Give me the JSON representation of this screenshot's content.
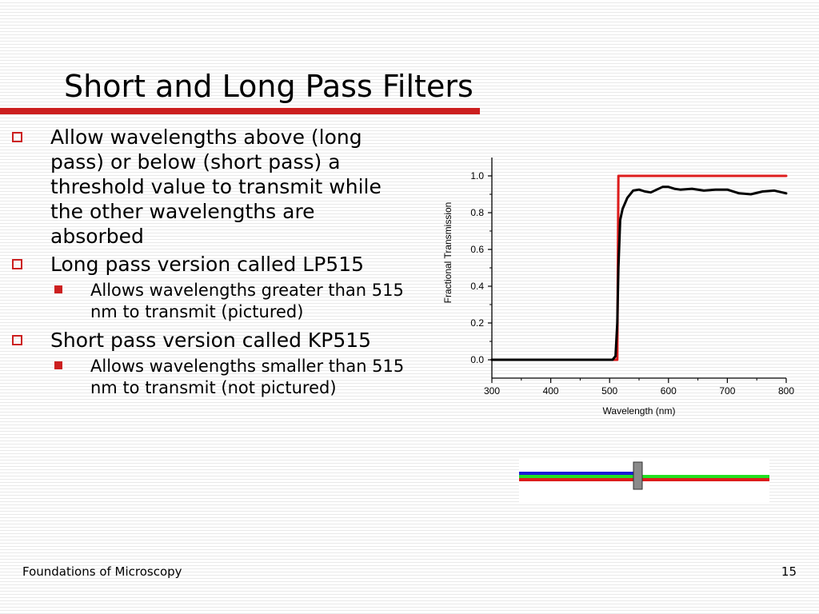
{
  "slide": {
    "title": "Short and Long Pass Filters",
    "accent_color": "#cc1f1f",
    "bullets": [
      {
        "text": "Allow wavelengths above (long pass) or below (short pass) a threshold value to transmit while the other wavelengths are absorbed",
        "sub": []
      },
      {
        "text": "Long pass version called LP515",
        "sub": [
          "Allows wavelengths greater than 515 nm to transmit (pictured)"
        ]
      },
      {
        "text": "Short pass version called KP515",
        "sub": [
          "Allows wavelengths smaller than 515 nm to transmit (not pictured)"
        ]
      }
    ]
  },
  "chart_data": {
    "type": "line",
    "title": "",
    "xlabel": "Wavelength (nm)",
    "ylabel": "Fractional Transmission",
    "xlim": [
      300,
      800
    ],
    "ylim": [
      0.0,
      1.0
    ],
    "xticks": [
      300,
      400,
      500,
      600,
      700,
      800
    ],
    "yticks": [
      "0.0",
      "0.2",
      "0.4",
      "0.6",
      "0.8",
      "1.0"
    ],
    "grid": false,
    "series": [
      {
        "color": "#dd1c1c",
        "x": [
          300,
          513,
          515,
          800
        ],
        "y": [
          0.0,
          0.0,
          1.0,
          1.0
        ]
      },
      {
        "color": "#000000",
        "x": [
          300,
          505,
          510,
          513,
          515,
          518,
          522,
          530,
          540,
          550,
          560,
          570,
          580,
          590,
          600,
          610,
          620,
          640,
          660,
          680,
          700,
          720,
          740,
          760,
          780,
          800
        ],
        "y": [
          0.0,
          0.0,
          0.02,
          0.2,
          0.5,
          0.76,
          0.82,
          0.88,
          0.92,
          0.925,
          0.915,
          0.91,
          0.925,
          0.94,
          0.94,
          0.93,
          0.925,
          0.93,
          0.92,
          0.925,
          0.925,
          0.905,
          0.9,
          0.915,
          0.92,
          0.905
        ]
      }
    ]
  },
  "filter_diagram": {
    "blue_color": "#1a1ad6",
    "green_color": "#22e022",
    "red_color": "#dd1c1c",
    "filter_color": "#8a8a8a"
  },
  "footer": {
    "course": "Foundations of Microscopy",
    "page": "15"
  }
}
